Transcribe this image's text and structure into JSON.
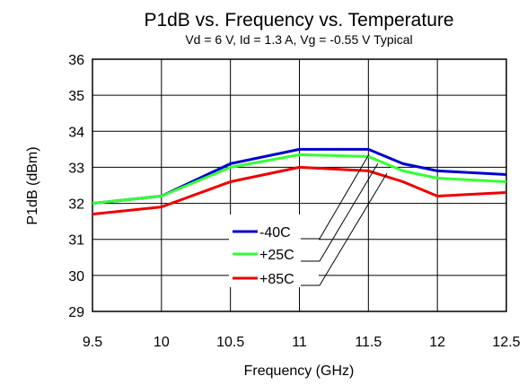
{
  "chart_data": {
    "type": "line",
    "title": "P1dB vs. Frequency vs. Temperature",
    "subtitle": "Vd = 6 V, Id = 1.3 A, Vg = -0.55 V Typical",
    "xlabel": "Frequency (GHz)",
    "ylabel": "P1dB (dBm)",
    "xlim": [
      9.5,
      12.5
    ],
    "ylim": [
      29,
      36
    ],
    "x_ticks": [
      "9.5",
      "10",
      "10.5",
      "11",
      "11.5",
      "12",
      "12.5"
    ],
    "y_ticks": [
      "29",
      "30",
      "31",
      "32",
      "33",
      "34",
      "35",
      "36"
    ],
    "grid": true,
    "legend_position": "lower-center",
    "series": [
      {
        "name": "-40C",
        "color": "#0000cc",
        "x": [
          9.5,
          10,
          10.5,
          11,
          11.5,
          11.75,
          12,
          12.5
        ],
        "y": [
          32.0,
          32.2,
          33.1,
          33.5,
          33.5,
          33.1,
          32.9,
          32.8
        ]
      },
      {
        "name": "+25C",
        "color": "#33ff33",
        "x": [
          9.5,
          10,
          10.5,
          11,
          11.5,
          11.75,
          12,
          12.5
        ],
        "y": [
          32.0,
          32.2,
          33.0,
          33.35,
          33.3,
          32.9,
          32.7,
          32.6
        ]
      },
      {
        "name": "+85C",
        "color": "#ee0000",
        "x": [
          9.5,
          10,
          10.5,
          11,
          11.5,
          11.75,
          12,
          12.5
        ],
        "y": [
          31.7,
          31.9,
          32.6,
          33.0,
          32.9,
          32.6,
          32.2,
          32.3
        ]
      }
    ]
  }
}
